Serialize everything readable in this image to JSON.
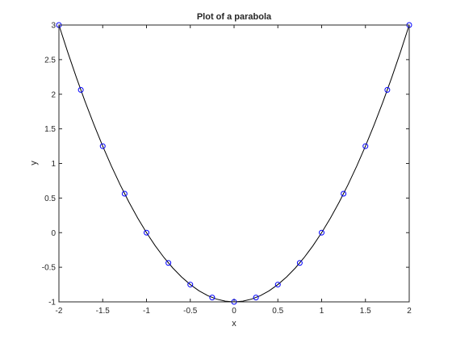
{
  "chart_data": {
    "type": "line",
    "title": "Plot of a parabola",
    "xlabel": "x",
    "ylabel": "y",
    "xlim": [
      -2,
      2
    ],
    "ylim": [
      -1,
      3
    ],
    "grid": false,
    "legend": "none",
    "x_ticks": [
      -2,
      -1.5,
      -1,
      -0.5,
      0,
      0.5,
      1,
      1.5,
      2
    ],
    "x_tick_labels": [
      "-2",
      "-1.5",
      "-1",
      "-0.5",
      "0",
      "0.5",
      "1",
      "1.5",
      "2"
    ],
    "y_ticks": [
      -1,
      -0.5,
      0,
      0.5,
      1,
      1.5,
      2,
      2.5,
      3
    ],
    "y_tick_labels": [
      "-1",
      "-0.5",
      "0",
      "0.5",
      "1",
      "1.5",
      "2",
      "2.5",
      "3"
    ],
    "line_series": {
      "color": "#000000",
      "x": [
        -2,
        -1.9,
        -1.8,
        -1.7,
        -1.6,
        -1.5,
        -1.4,
        -1.3,
        -1.2,
        -1.1,
        -1.0,
        -0.9,
        -0.8,
        -0.7,
        -0.6,
        -0.5,
        -0.4,
        -0.3,
        -0.2,
        -0.1,
        0,
        0.1,
        0.2,
        0.3,
        0.4,
        0.5,
        0.6,
        0.7,
        0.8,
        0.9,
        1.0,
        1.1,
        1.2,
        1.3,
        1.4,
        1.5,
        1.6,
        1.7,
        1.8,
        1.9,
        2.0
      ],
      "y": [
        3,
        2.61,
        2.24,
        1.89,
        1.56,
        1.25,
        0.96,
        0.69,
        0.44,
        0.21,
        0,
        -0.19,
        -0.36,
        -0.51,
        -0.64,
        -0.75,
        -0.84,
        -0.91,
        -0.96,
        -0.99,
        -1,
        -0.99,
        -0.96,
        -0.91,
        -0.84,
        -0.75,
        -0.64,
        -0.51,
        -0.36,
        -0.19,
        0,
        0.21,
        0.44,
        0.69,
        0.96,
        1.25,
        1.56,
        1.89,
        2.24,
        2.61,
        3
      ]
    },
    "marker_series": {
      "color": "#0000ff",
      "marker": "circle",
      "x": [
        -2,
        -1.75,
        -1.5,
        -1.25,
        -1,
        -0.75,
        -0.5,
        -0.25,
        0,
        0.25,
        0.5,
        0.75,
        1,
        1.25,
        1.5,
        1.75,
        2
      ],
      "y": [
        3,
        2.0625,
        1.25,
        0.5625,
        0,
        -0.4375,
        -0.75,
        -0.9375,
        -1,
        -0.9375,
        -0.75,
        -0.4375,
        0,
        0.5625,
        1.25,
        2.0625,
        3
      ]
    }
  }
}
